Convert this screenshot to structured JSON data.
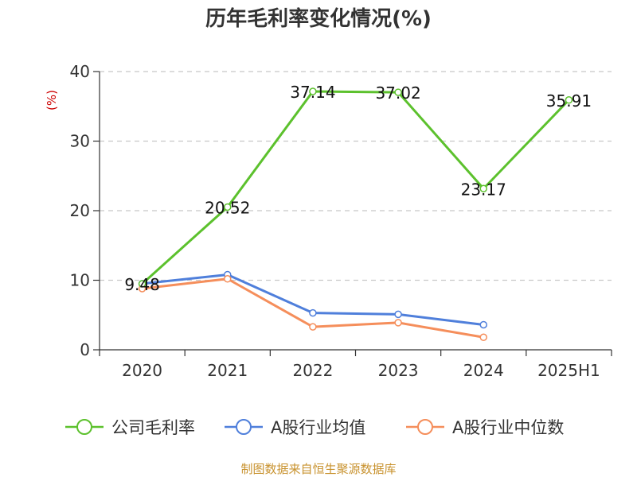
{
  "chart_data": {
    "type": "line",
    "title": "历年毛利率变化情况(%)",
    "ylabel": "(%)",
    "xlabel": "",
    "categories": [
      "2020",
      "2021",
      "2022",
      "2023",
      "2024",
      "2025H1"
    ],
    "ylim": [
      0,
      40
    ],
    "yticks": [
      0,
      10,
      20,
      30,
      40
    ],
    "grid": true,
    "legend_position": "bottom",
    "series": [
      {
        "name": "公司毛利率",
        "color": "#5cc12d",
        "values": [
          9.48,
          20.52,
          37.14,
          37.02,
          23.17,
          35.91
        ],
        "show_labels": true
      },
      {
        "name": "A股行业均值",
        "color": "#4f7fdb",
        "values": [
          9.5,
          10.8,
          5.3,
          5.1,
          3.6,
          null
        ],
        "show_labels": false
      },
      {
        "name": "A股行业中位数",
        "color": "#f58e5b",
        "values": [
          8.8,
          10.2,
          3.3,
          3.9,
          1.8,
          null
        ],
        "show_labels": false
      }
    ]
  },
  "footer": {
    "source": "制图数据来自恒生聚源数据库"
  }
}
